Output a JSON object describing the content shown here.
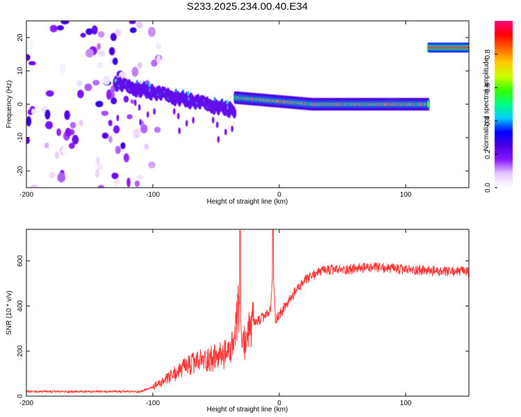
{
  "title": "S233.2025.234.00.40.E34",
  "chart_data": [
    {
      "type": "heatmap",
      "xlabel": "Height of straight line (km)",
      "ylabel": "Frequency (Hz)",
      "xlim": [
        -200,
        150
      ],
      "ylim": [
        -25,
        25
      ],
      "x_ticks": [
        -200,
        -100,
        0,
        100
      ],
      "y_ticks": [
        -20,
        -10,
        0,
        10,
        20
      ],
      "colorbar": {
        "label": "Normalized spectral amplitude",
        "range": [
          0,
          1
        ],
        "ticks": [
          "0.0",
          "0.2",
          "0.4",
          "0.6",
          "0.8"
        ],
        "tick_values": [
          0,
          0.2,
          0.4,
          0.6,
          0.8
        ],
        "colors": [
          "#ffffff",
          "#e6ccff",
          "#8c1aff",
          "#4b00e0",
          "#0000ff",
          "#00ccff",
          "#00ff80",
          "#33ff00",
          "#ccff00",
          "#ffcc00",
          "#ff6600",
          "#ff0000",
          "#ff0080"
        ]
      },
      "features": [
        {
          "name": "broadband noise",
          "x_range": [
            -200,
            -95
          ],
          "freq_range": [
            -25,
            25
          ],
          "amplitude": 0.2
        },
        {
          "name": "descending trace",
          "x_range": [
            -130,
            -35
          ],
          "freq_start": 6,
          "freq_end": -2,
          "amplitude": 0.45
        },
        {
          "name": "main trace",
          "x_range": [
            -35,
            118
          ],
          "freq_start": 2,
          "freq_end": 0,
          "amplitude": 0.9
        },
        {
          "name": "upper trace",
          "x_range": [
            118,
            150
          ],
          "freq": 17,
          "amplitude": 0.95
        }
      ]
    },
    {
      "type": "line",
      "xlabel": "Height of straight line (km)",
      "ylabel": "SNR (10 * v/v)",
      "xlim": [
        -200,
        150
      ],
      "ylim": [
        0,
        740
      ],
      "x_ticks": [
        -200,
        -100,
        0,
        100
      ],
      "y_ticks": [
        0,
        200,
        400,
        600
      ],
      "color": "#ff3333",
      "series": [
        {
          "name": "SNR envelope",
          "x": [
            -200,
            -110,
            -100,
            -90,
            -80,
            -70,
            -60,
            -50,
            -40,
            -35,
            -32,
            -30,
            -28,
            -25,
            -20,
            -15,
            -10,
            -7,
            -5,
            -3,
            0,
            5,
            10,
            15,
            20,
            25,
            30,
            40,
            50,
            60,
            70,
            80,
            90,
            100,
            110,
            120,
            130,
            140,
            150
          ],
          "values": [
            20,
            20,
            40,
            70,
            110,
            140,
            160,
            170,
            190,
            250,
            400,
            260,
            230,
            280,
            320,
            340,
            360,
            380,
            560,
            340,
            360,
            400,
            440,
            480,
            510,
            530,
            550,
            560,
            560,
            565,
            570,
            570,
            565,
            560,
            560,
            555,
            550,
            555,
            550
          ],
          "spikes": [
            {
              "x": -31,
              "value": 735
            },
            {
              "x": -5,
              "value": 740
            }
          ]
        }
      ]
    }
  ]
}
